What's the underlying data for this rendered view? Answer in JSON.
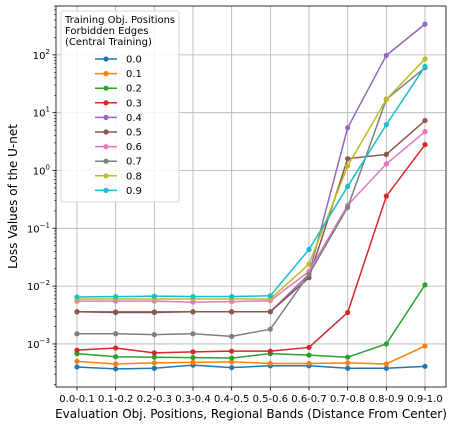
{
  "chart_data": {
    "type": "line",
    "xlabel": "Evaluation Obj. Positions, Regional Bands (Distance From Center)",
    "ylabel": "Loss Values of the U-net",
    "yscale": "log",
    "ylim": [
      0.00018,
      700
    ],
    "grid": true,
    "legend": {
      "placement": "top-left",
      "title_lines": [
        "Training Obj. Positions",
        "Forbidden Edges",
        "(Central Training)"
      ]
    },
    "categories": [
      "0.0-0.1",
      "0.1-0.2",
      "0.2-0.3",
      "0.3-0.4",
      "0.4-0.5",
      "0.5-0.6",
      "0.6-0.7",
      "0.7-0.8",
      "0.8-0.9",
      "0.9-1.0"
    ],
    "y_ticks": [
      {
        "value": 0.001,
        "base": "10",
        "exp": "−3"
      },
      {
        "value": 0.01,
        "base": "10",
        "exp": "−2"
      },
      {
        "value": 0.1,
        "base": "10",
        "exp": "−1"
      },
      {
        "value": 1,
        "base": "10",
        "exp": "0"
      },
      {
        "value": 10,
        "base": "10",
        "exp": "1"
      },
      {
        "value": 100,
        "base": "10",
        "exp": "2"
      }
    ],
    "series": [
      {
        "name": "0.0",
        "color": "#1f77b4",
        "values": [
          0.0004,
          0.00037,
          0.00038,
          0.00043,
          0.00039,
          0.00042,
          0.00042,
          0.00038,
          0.00038,
          0.00041
        ]
      },
      {
        "name": "0.1",
        "color": "#ff7f0e",
        "values": [
          0.0005,
          0.00045,
          0.00047,
          0.00048,
          0.00049,
          0.00046,
          0.00046,
          0.00047,
          0.00045,
          0.00092
        ]
      },
      {
        "name": "0.2",
        "color": "#2ca02c",
        "values": [
          0.00068,
          0.0006,
          0.00059,
          0.00058,
          0.00057,
          0.00068,
          0.00064,
          0.00059,
          0.001,
          0.0105
        ]
      },
      {
        "name": "0.3",
        "color": "#d62728",
        "values": [
          0.00078,
          0.00085,
          0.0007,
          0.00073,
          0.00075,
          0.00075,
          0.00087,
          0.0035,
          0.36,
          2.8
        ]
      },
      {
        "name": "0.4",
        "color": "#9467bd",
        "values": [
          0.0036,
          0.0036,
          0.0036,
          0.0036,
          0.0036,
          0.0036,
          0.016,
          5.5,
          98,
          340
        ]
      },
      {
        "name": "0.5",
        "color": "#8c564b",
        "values": [
          0.0036,
          0.0035,
          0.0035,
          0.0036,
          0.0036,
          0.0036,
          0.014,
          1.6,
          1.9,
          7.3
        ]
      },
      {
        "name": "0.6",
        "color": "#e377c2",
        "values": [
          0.0055,
          0.0055,
          0.0055,
          0.0053,
          0.0054,
          0.0056,
          0.018,
          0.25,
          1.3,
          4.7
        ]
      },
      {
        "name": "0.7",
        "color": "#7f7f7f",
        "values": [
          0.0015,
          0.0015,
          0.00145,
          0.0015,
          0.00135,
          0.0018,
          0.016,
          0.23,
          17,
          60
        ]
      },
      {
        "name": "0.8",
        "color": "#bcbd22",
        "values": [
          0.006,
          0.006,
          0.006,
          0.006,
          0.006,
          0.006,
          0.024,
          1.2,
          17,
          85
        ]
      },
      {
        "name": "0.9",
        "color": "#17becf",
        "values": [
          0.0065,
          0.0066,
          0.0067,
          0.0066,
          0.0066,
          0.0068,
          0.043,
          0.53,
          6.2,
          63
        ]
      }
    ]
  }
}
